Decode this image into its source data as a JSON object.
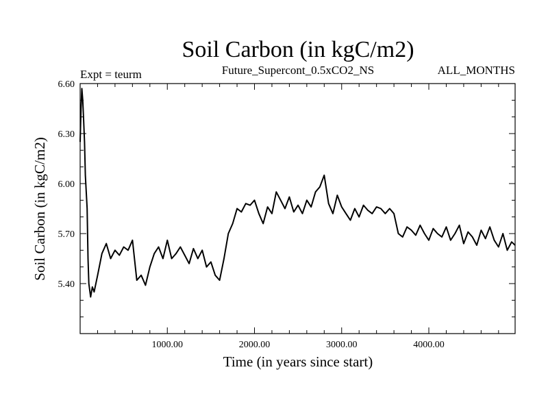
{
  "chart_data": {
    "type": "line",
    "title": "Soil Carbon (in kgC/m2)",
    "subtitle_left": "Expt = teurm",
    "subtitle_center": "Future_Supercont_0.5xCO2_NS",
    "subtitle_right": "ALL_MONTHS",
    "xlabel": "Time (in years since start)",
    "ylabel": "Soil Carbon (in kgC/m2)",
    "xlim": [
      0,
      4990
    ],
    "ylim": [
      5.1,
      6.6
    ],
    "xticks": [
      1000,
      2000,
      3000,
      4000
    ],
    "xtick_labels": [
      "1000.00",
      "2000.00",
      "3000.00",
      "4000.00"
    ],
    "yticks": [
      5.4,
      5.7,
      6.0,
      6.3,
      6.6
    ],
    "ytick_labels": [
      "5.40",
      "5.70",
      "6.00",
      "6.30",
      "6.60"
    ],
    "grid": false,
    "line_color": "#000000",
    "series": [
      {
        "x": [
          0,
          10,
          20,
          30,
          40,
          50,
          60,
          70,
          80,
          90,
          100,
          120,
          140,
          160,
          200,
          250,
          300,
          350,
          400,
          450,
          500,
          550,
          600,
          650,
          700,
          750,
          800,
          850,
          900,
          950,
          1000,
          1050,
          1100,
          1150,
          1200,
          1250,
          1300,
          1350,
          1400,
          1450,
          1500,
          1550,
          1600,
          1650,
          1700,
          1750,
          1800,
          1850,
          1900,
          1950,
          2000,
          2050,
          2100,
          2150,
          2200,
          2250,
          2300,
          2350,
          2400,
          2450,
          2500,
          2550,
          2600,
          2650,
          2700,
          2750,
          2800,
          2850,
          2900,
          2950,
          3000,
          3050,
          3100,
          3150,
          3200,
          3250,
          3300,
          3350,
          3400,
          3450,
          3500,
          3550,
          3600,
          3650,
          3700,
          3750,
          3800,
          3850,
          3900,
          3950,
          4000,
          4050,
          4100,
          4150,
          4200,
          4250,
          4300,
          4350,
          4400,
          4450,
          4500,
          4550,
          4600,
          4650,
          4700,
          4750,
          4800,
          4850,
          4900,
          4950,
          4990
        ],
        "y": [
          6.25,
          6.45,
          6.57,
          6.5,
          6.38,
          6.25,
          6.05,
          5.95,
          5.85,
          5.55,
          5.4,
          5.32,
          5.38,
          5.35,
          5.45,
          5.58,
          5.64,
          5.55,
          5.6,
          5.57,
          5.62,
          5.6,
          5.66,
          5.42,
          5.45,
          5.39,
          5.5,
          5.58,
          5.62,
          5.55,
          5.66,
          5.55,
          5.58,
          5.62,
          5.57,
          5.52,
          5.61,
          5.55,
          5.6,
          5.5,
          5.53,
          5.45,
          5.42,
          5.55,
          5.7,
          5.76,
          5.85,
          5.83,
          5.88,
          5.87,
          5.9,
          5.82,
          5.76,
          5.86,
          5.82,
          5.95,
          5.9,
          5.85,
          5.92,
          5.83,
          5.87,
          5.82,
          5.9,
          5.86,
          5.95,
          5.98,
          6.05,
          5.88,
          5.82,
          5.93,
          5.86,
          5.82,
          5.78,
          5.85,
          5.8,
          5.87,
          5.84,
          5.82,
          5.86,
          5.85,
          5.82,
          5.85,
          5.82,
          5.7,
          5.68,
          5.74,
          5.72,
          5.69,
          5.75,
          5.7,
          5.66,
          5.73,
          5.7,
          5.68,
          5.74,
          5.66,
          5.7,
          5.75,
          5.64,
          5.71,
          5.68,
          5.63,
          5.72,
          5.67,
          5.74,
          5.66,
          5.62,
          5.7,
          5.6,
          5.65,
          5.63
        ]
      }
    ]
  }
}
